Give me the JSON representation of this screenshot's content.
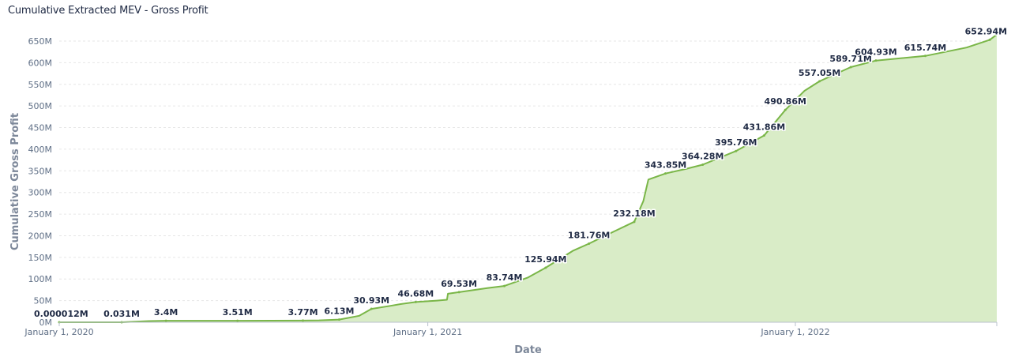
{
  "title": "Cumulative Extracted MEV - Gross Profit",
  "colors": {
    "line": "#7ab648",
    "area": "#d9ecc7",
    "axis_text": "#5f6f86",
    "label_text": "#1f2a44"
  },
  "chart_data": {
    "type": "area",
    "title": "Cumulative Extracted MEV - Gross Profit",
    "xlabel": "Date",
    "ylabel": "Cumulative Gross Profit",
    "x_axis": {
      "type": "date",
      "range": [
        "2020-01-01",
        "2022-07-20"
      ],
      "ticks": [
        {
          "date": "2020-01-01",
          "label": "January 1, 2020"
        },
        {
          "date": "2021-01-01",
          "label": "January 1, 2021"
        },
        {
          "date": "2022-01-01",
          "label": "January 1, 2022"
        }
      ]
    },
    "y_axis": {
      "range": [
        0,
        650
      ],
      "ticks": [
        0,
        50,
        100,
        150,
        200,
        250,
        300,
        350,
        400,
        450,
        500,
        550,
        600,
        650
      ],
      "tick_labels": [
        "0M",
        "50M",
        "100M",
        "150M",
        "200M",
        "250M",
        "300M",
        "350M",
        "400M",
        "450M",
        "500M",
        "550M",
        "600M",
        "650M"
      ]
    },
    "grid": true,
    "series": [
      {
        "points": [
          {
            "x": "2020-01-01",
            "y": 1.2e-05
          },
          {
            "x": "2020-01-31",
            "y": 0.02
          },
          {
            "x": "2020-03-03",
            "y": 0.031
          },
          {
            "x": "2020-03-30",
            "y": 2.8
          },
          {
            "x": "2020-04-16",
            "y": 3.4
          },
          {
            "x": "2020-05-20",
            "y": 3.46
          },
          {
            "x": "2020-06-26",
            "y": 3.51
          },
          {
            "x": "2020-07-30",
            "y": 3.6
          },
          {
            "x": "2020-08-30",
            "y": 3.77
          },
          {
            "x": "2020-09-15",
            "y": 4.3
          },
          {
            "x": "2020-10-05",
            "y": 6.13
          },
          {
            "x": "2020-10-25",
            "y": 15
          },
          {
            "x": "2020-11-06",
            "y": 30.93
          },
          {
            "x": "2020-11-25",
            "y": 38
          },
          {
            "x": "2020-12-05",
            "y": 42
          },
          {
            "x": "2020-12-20",
            "y": 46.68
          },
          {
            "x": "2021-01-10",
            "y": 50
          },
          {
            "x": "2021-01-20",
            "y": 52
          },
          {
            "x": "2021-01-21",
            "y": 66
          },
          {
            "x": "2021-02-01",
            "y": 69.53
          },
          {
            "x": "2021-03-01",
            "y": 79
          },
          {
            "x": "2021-03-18",
            "y": 83.74
          },
          {
            "x": "2021-04-10",
            "y": 103
          },
          {
            "x": "2021-04-28",
            "y": 125.94
          },
          {
            "x": "2021-05-25",
            "y": 165
          },
          {
            "x": "2021-06-10",
            "y": 181.76
          },
          {
            "x": "2021-07-05",
            "y": 210
          },
          {
            "x": "2021-07-25",
            "y": 232.18
          },
          {
            "x": "2021-08-03",
            "y": 280
          },
          {
            "x": "2021-08-08",
            "y": 330
          },
          {
            "x": "2021-08-25",
            "y": 343.85
          },
          {
            "x": "2021-09-15",
            "y": 355
          },
          {
            "x": "2021-10-01",
            "y": 364.28
          },
          {
            "x": "2021-11-03",
            "y": 395.76
          },
          {
            "x": "2021-12-01",
            "y": 431.86
          },
          {
            "x": "2021-12-22",
            "y": 490.86
          },
          {
            "x": "2022-01-10",
            "y": 535
          },
          {
            "x": "2022-01-25",
            "y": 557.05
          },
          {
            "x": "2022-02-25",
            "y": 589.71
          },
          {
            "x": "2022-03-22",
            "y": 604.93
          },
          {
            "x": "2022-05-10",
            "y": 615.74
          },
          {
            "x": "2022-06-20",
            "y": 635
          },
          {
            "x": "2022-07-13",
            "y": 652.94
          },
          {
            "x": "2022-07-20",
            "y": 665
          }
        ]
      }
    ],
    "data_labels": [
      {
        "x": "2020-01-01",
        "y": 1.2e-05,
        "text": "0.000012M"
      },
      {
        "x": "2020-03-03",
        "y": 0.031,
        "text": "0.031M"
      },
      {
        "x": "2020-04-16",
        "y": 3.4,
        "text": "3.4M"
      },
      {
        "x": "2020-06-26",
        "y": 3.51,
        "text": "3.51M"
      },
      {
        "x": "2020-08-30",
        "y": 3.77,
        "text": "3.77M"
      },
      {
        "x": "2020-10-05",
        "y": 6.13,
        "text": "6.13M"
      },
      {
        "x": "2020-11-06",
        "y": 30.93,
        "text": "30.93M"
      },
      {
        "x": "2020-12-20",
        "y": 46.68,
        "text": "46.68M"
      },
      {
        "x": "2021-02-01",
        "y": 69.53,
        "text": "69.53M"
      },
      {
        "x": "2021-03-18",
        "y": 83.74,
        "text": "83.74M"
      },
      {
        "x": "2021-04-28",
        "y": 125.94,
        "text": "125.94M"
      },
      {
        "x": "2021-06-10",
        "y": 181.76,
        "text": "181.76M"
      },
      {
        "x": "2021-07-25",
        "y": 232.18,
        "text": "232.18M"
      },
      {
        "x": "2021-08-25",
        "y": 343.85,
        "text": "343.85M"
      },
      {
        "x": "2021-10-01",
        "y": 364.28,
        "text": "364.28M"
      },
      {
        "x": "2021-11-03",
        "y": 395.76,
        "text": "395.76M"
      },
      {
        "x": "2021-12-01",
        "y": 431.86,
        "text": "431.86M"
      },
      {
        "x": "2021-12-22",
        "y": 490.86,
        "text": "490.86M"
      },
      {
        "x": "2022-01-25",
        "y": 557.05,
        "text": "557.05M"
      },
      {
        "x": "2022-02-25",
        "y": 589.71,
        "text": "589.71M"
      },
      {
        "x": "2022-03-22",
        "y": 604.93,
        "text": "604.93M"
      },
      {
        "x": "2022-05-10",
        "y": 615.74,
        "text": "615.74M"
      },
      {
        "x": "2022-07-13",
        "y": 652.94,
        "text": "652.94M"
      }
    ]
  }
}
